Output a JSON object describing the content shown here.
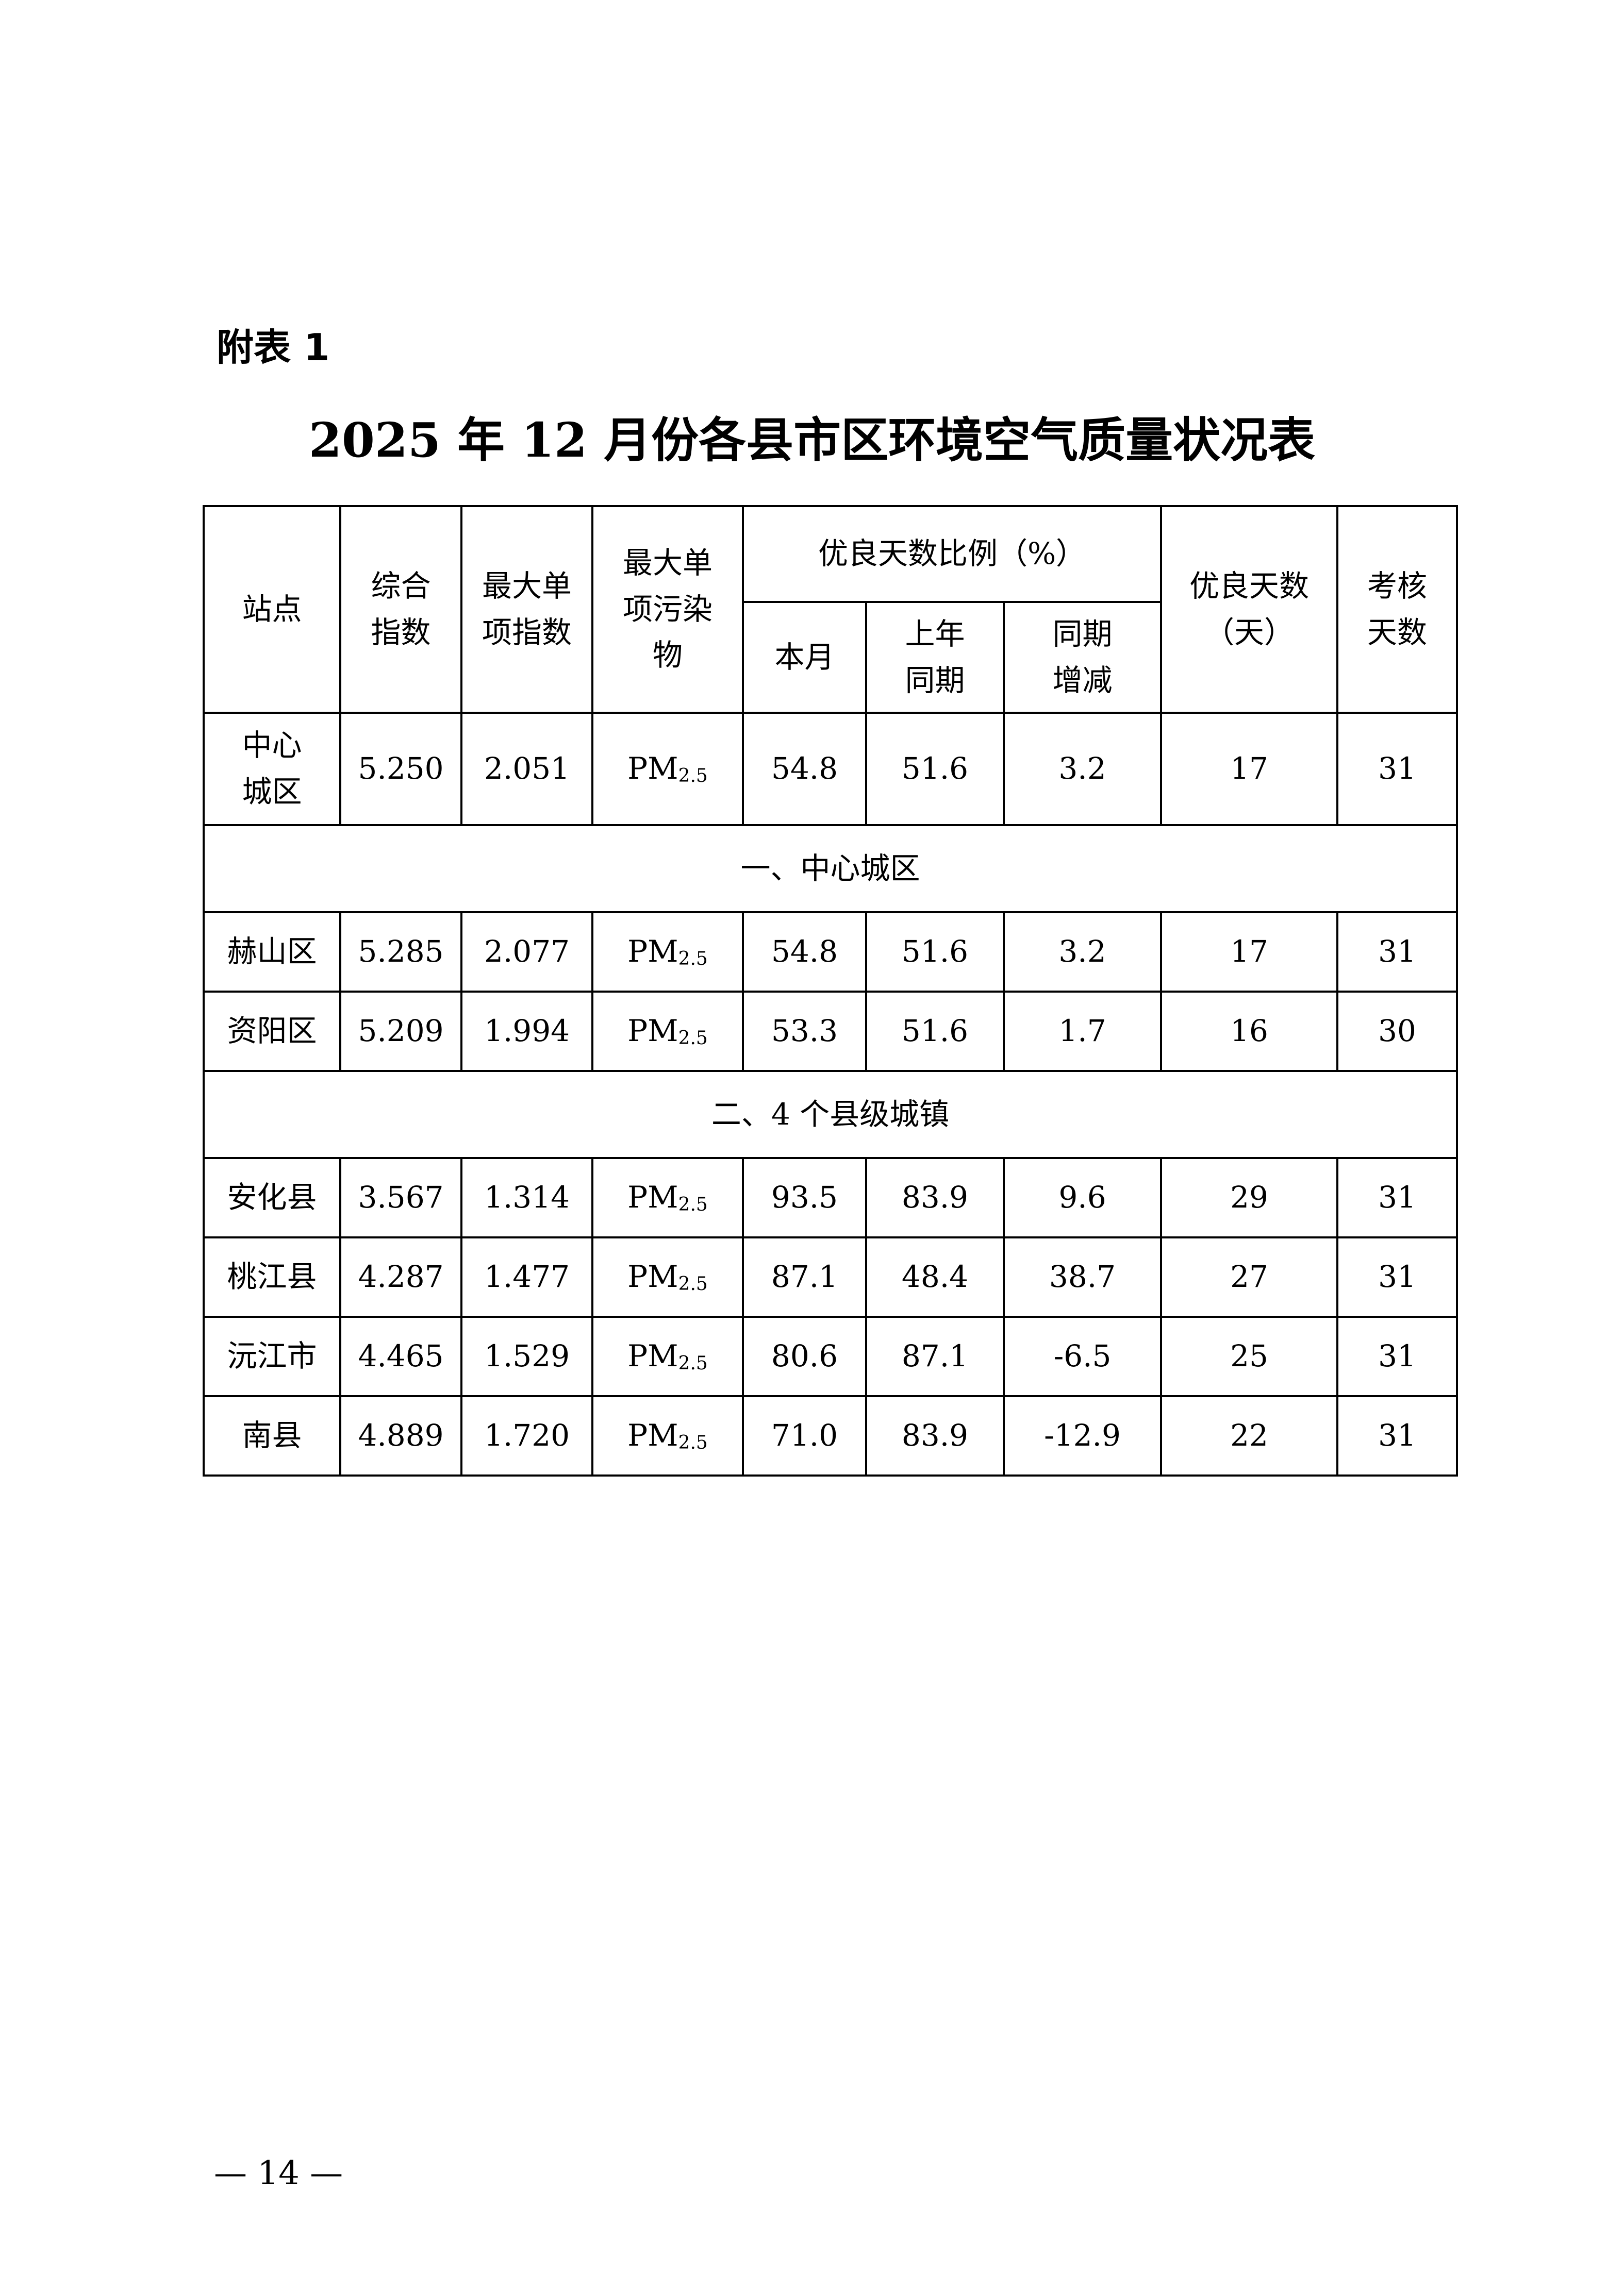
{
  "appendix_label": "附表 1",
  "title": "2025 年 12 月份各县市区环境空气质量状况表",
  "table": {
    "headers": {
      "station": "站点",
      "composite_index": "综合指数",
      "max_single_index": "最大单项指数",
      "max_pollutant": "最大单项污染物",
      "good_ratio": "优良天数比例（%）",
      "this_month": "本月",
      "last_year": "上年同期",
      "change": "同期增减",
      "good_days": "优良天数（天）",
      "assessed_days": "考核天数"
    },
    "summary_row": {
      "station": "中心城区",
      "composite": "5.250",
      "max_index": "2.051",
      "pollutant": "PM",
      "pollutant_sub": "2.5",
      "this_month": "54.8",
      "last_year": "51.6",
      "change": "3.2",
      "good_days": "17",
      "assessed_days": "31"
    },
    "sections": [
      {
        "title": "一、中心城区",
        "rows": [
          {
            "station": "赫山区",
            "composite": "5.285",
            "max_index": "2.077",
            "pollutant": "PM",
            "pollutant_sub": "2.5",
            "this_month": "54.8",
            "last_year": "51.6",
            "change": "3.2",
            "good_days": "17",
            "assessed_days": "31"
          },
          {
            "station": "资阳区",
            "composite": "5.209",
            "max_index": "1.994",
            "pollutant": "PM",
            "pollutant_sub": "2.5",
            "this_month": "53.3",
            "last_year": "51.6",
            "change": "1.7",
            "good_days": "16",
            "assessed_days": "30"
          }
        ]
      },
      {
        "title": "二、4 个县级城镇",
        "rows": [
          {
            "station": "安化县",
            "composite": "3.567",
            "max_index": "1.314",
            "pollutant": "PM",
            "pollutant_sub": "2.5",
            "this_month": "93.5",
            "last_year": "83.9",
            "change": "9.6",
            "good_days": "29",
            "assessed_days": "31"
          },
          {
            "station": "桃江县",
            "composite": "4.287",
            "max_index": "1.477",
            "pollutant": "PM",
            "pollutant_sub": "2.5",
            "this_month": "87.1",
            "last_year": "48.4",
            "change": "38.7",
            "good_days": "27",
            "assessed_days": "31"
          },
          {
            "station": "沅江市",
            "composite": "4.465",
            "max_index": "1.529",
            "pollutant": "PM",
            "pollutant_sub": "2.5",
            "this_month": "80.6",
            "last_year": "87.1",
            "change": "-6.5",
            "good_days": "25",
            "assessed_days": "31"
          },
          {
            "station": "南县",
            "composite": "4.889",
            "max_index": "1.720",
            "pollutant": "PM",
            "pollutant_sub": "2.5",
            "this_month": "71.0",
            "last_year": "83.9",
            "change": "-12.9",
            "good_days": "22",
            "assessed_days": "31"
          }
        ]
      }
    ]
  },
  "page_number": "— 14 —"
}
